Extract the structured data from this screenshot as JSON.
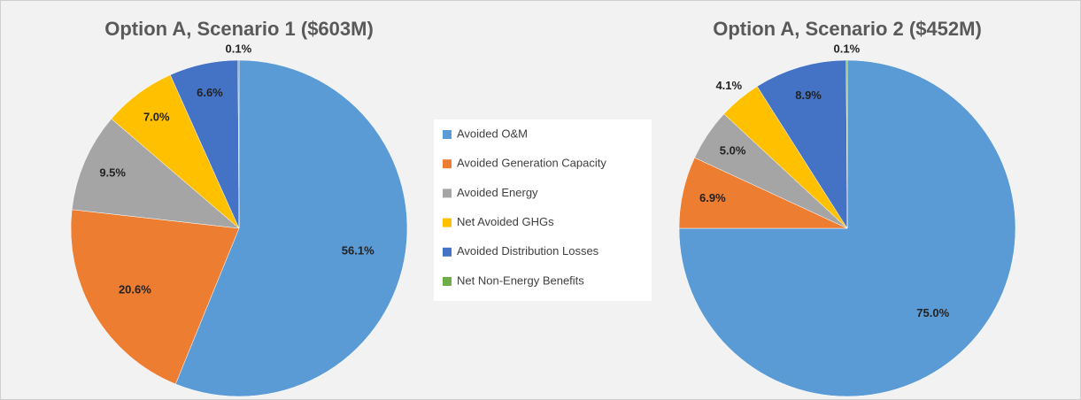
{
  "legend": {
    "categories": [
      "Avoided O&M",
      "Avoided Generation Capacity",
      "Avoided Energy",
      "Net Avoided GHGs",
      "Avoided Distribution Losses",
      "Net Non-Energy Benefits"
    ],
    "colors": [
      "#5b9bd5",
      "#ed7d31",
      "#a5a5a5",
      "#ffc000",
      "#4472c4",
      "#70ad47"
    ]
  },
  "chart_data": [
    {
      "type": "pie",
      "title": "Option A, Scenario 1 ($603M)",
      "values": [
        56.1,
        20.6,
        9.5,
        7.0,
        6.6,
        0.1
      ],
      "value_labels": [
        "56.1%",
        "20.6%",
        "9.5%",
        "7.0%",
        "6.6%",
        "0.1%"
      ]
    },
    {
      "type": "pie",
      "title": "Option A, Scenario 2 ($452M)",
      "values": [
        75.0,
        6.9,
        5.0,
        4.1,
        8.9,
        0.1
      ],
      "value_labels": [
        "75.0%",
        "6.9%",
        "5.0%",
        "4.1%",
        "8.9%",
        "0.1%"
      ]
    }
  ]
}
